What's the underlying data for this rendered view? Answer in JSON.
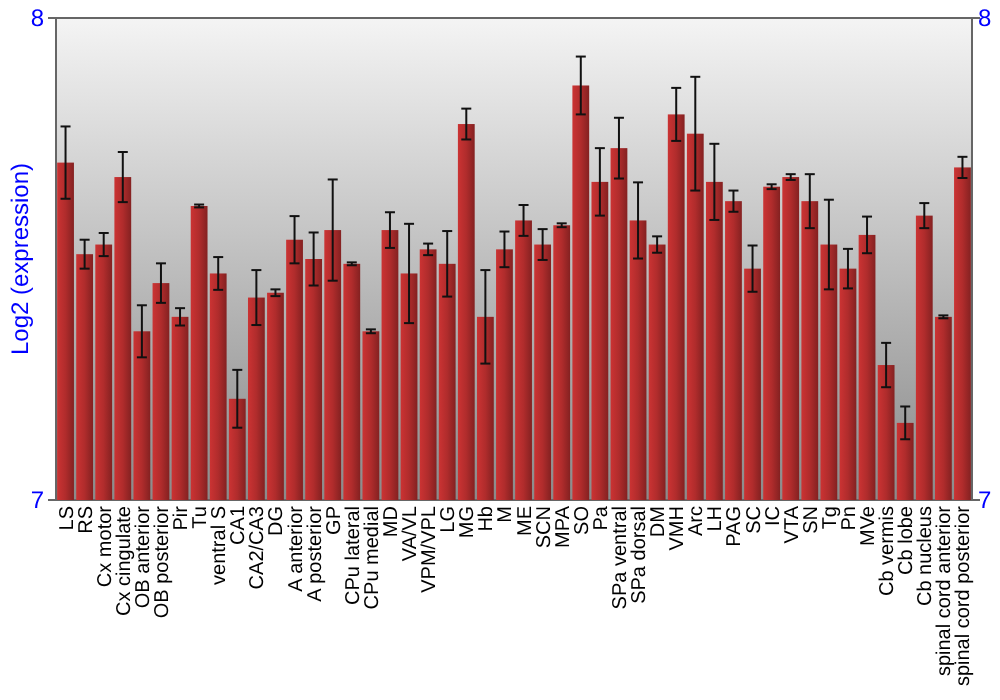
{
  "chart_data": {
    "type": "bar",
    "ylabel": "Log2 (expression)",
    "categories": [
      "LS",
      "RS",
      "Cx motor",
      "Cx cingulate",
      "OB anterior",
      "OB posterior",
      "Pir",
      "Tu",
      "ventral S",
      "CA1",
      "CA2/CA3",
      "DG",
      "A anterior",
      "A posterior",
      "GP",
      "CPu lateral",
      "CPu medial",
      "MD",
      "VA/VL",
      "VPM/VPL",
      "LG",
      "MG",
      "Hb",
      "M",
      "ME",
      "SCN",
      "MPA",
      "SO",
      "Pa",
      "SPa ventral",
      "SPa dorsal",
      "DM",
      "VMH",
      "Arc",
      "LH",
      "PAG",
      "SC",
      "IC",
      "VTA",
      "SN",
      "Tg",
      "Pn",
      "MVe",
      "Cb vermis",
      "Cb lobe",
      "Cb nucleus",
      "spinal cord anterior",
      "spinal cord posterior"
    ],
    "values": [
      7.7,
      7.51,
      7.53,
      7.67,
      7.35,
      7.45,
      7.38,
      7.61,
      7.47,
      7.21,
      7.42,
      7.43,
      7.54,
      7.5,
      7.56,
      7.49,
      7.35,
      7.56,
      7.47,
      7.52,
      7.49,
      7.78,
      7.38,
      7.52,
      7.58,
      7.53,
      7.57,
      7.86,
      7.66,
      7.73,
      7.58,
      7.53,
      7.8,
      7.76,
      7.66,
      7.62,
      7.48,
      7.65,
      7.67,
      7.62,
      7.53,
      7.48,
      7.55,
      7.28,
      7.16,
      7.59,
      7.38,
      7.69
    ],
    "errors": [
      0.075,
      0.03,
      0.024,
      0.052,
      0.054,
      0.041,
      0.018,
      0.003,
      0.034,
      0.06,
      0.057,
      0.007,
      0.049,
      0.055,
      0.105,
      0.003,
      0.004,
      0.037,
      0.103,
      0.012,
      0.068,
      0.032,
      0.097,
      0.037,
      0.032,
      0.032,
      0.004,
      0.06,
      0.07,
      0.063,
      0.079,
      0.017,
      0.055,
      0.118,
      0.079,
      0.022,
      0.048,
      0.005,
      0.006,
      0.056,
      0.093,
      0.041,
      0.038,
      0.046,
      0.034,
      0.026,
      0.003,
      0.022
    ],
    "color": "#b02c2c",
    "ylim": [
      7,
      8
    ],
    "yticks": [
      7,
      8
    ],
    "y2lim": [
      7,
      8
    ],
    "y2ticks": [
      7,
      8
    ]
  }
}
